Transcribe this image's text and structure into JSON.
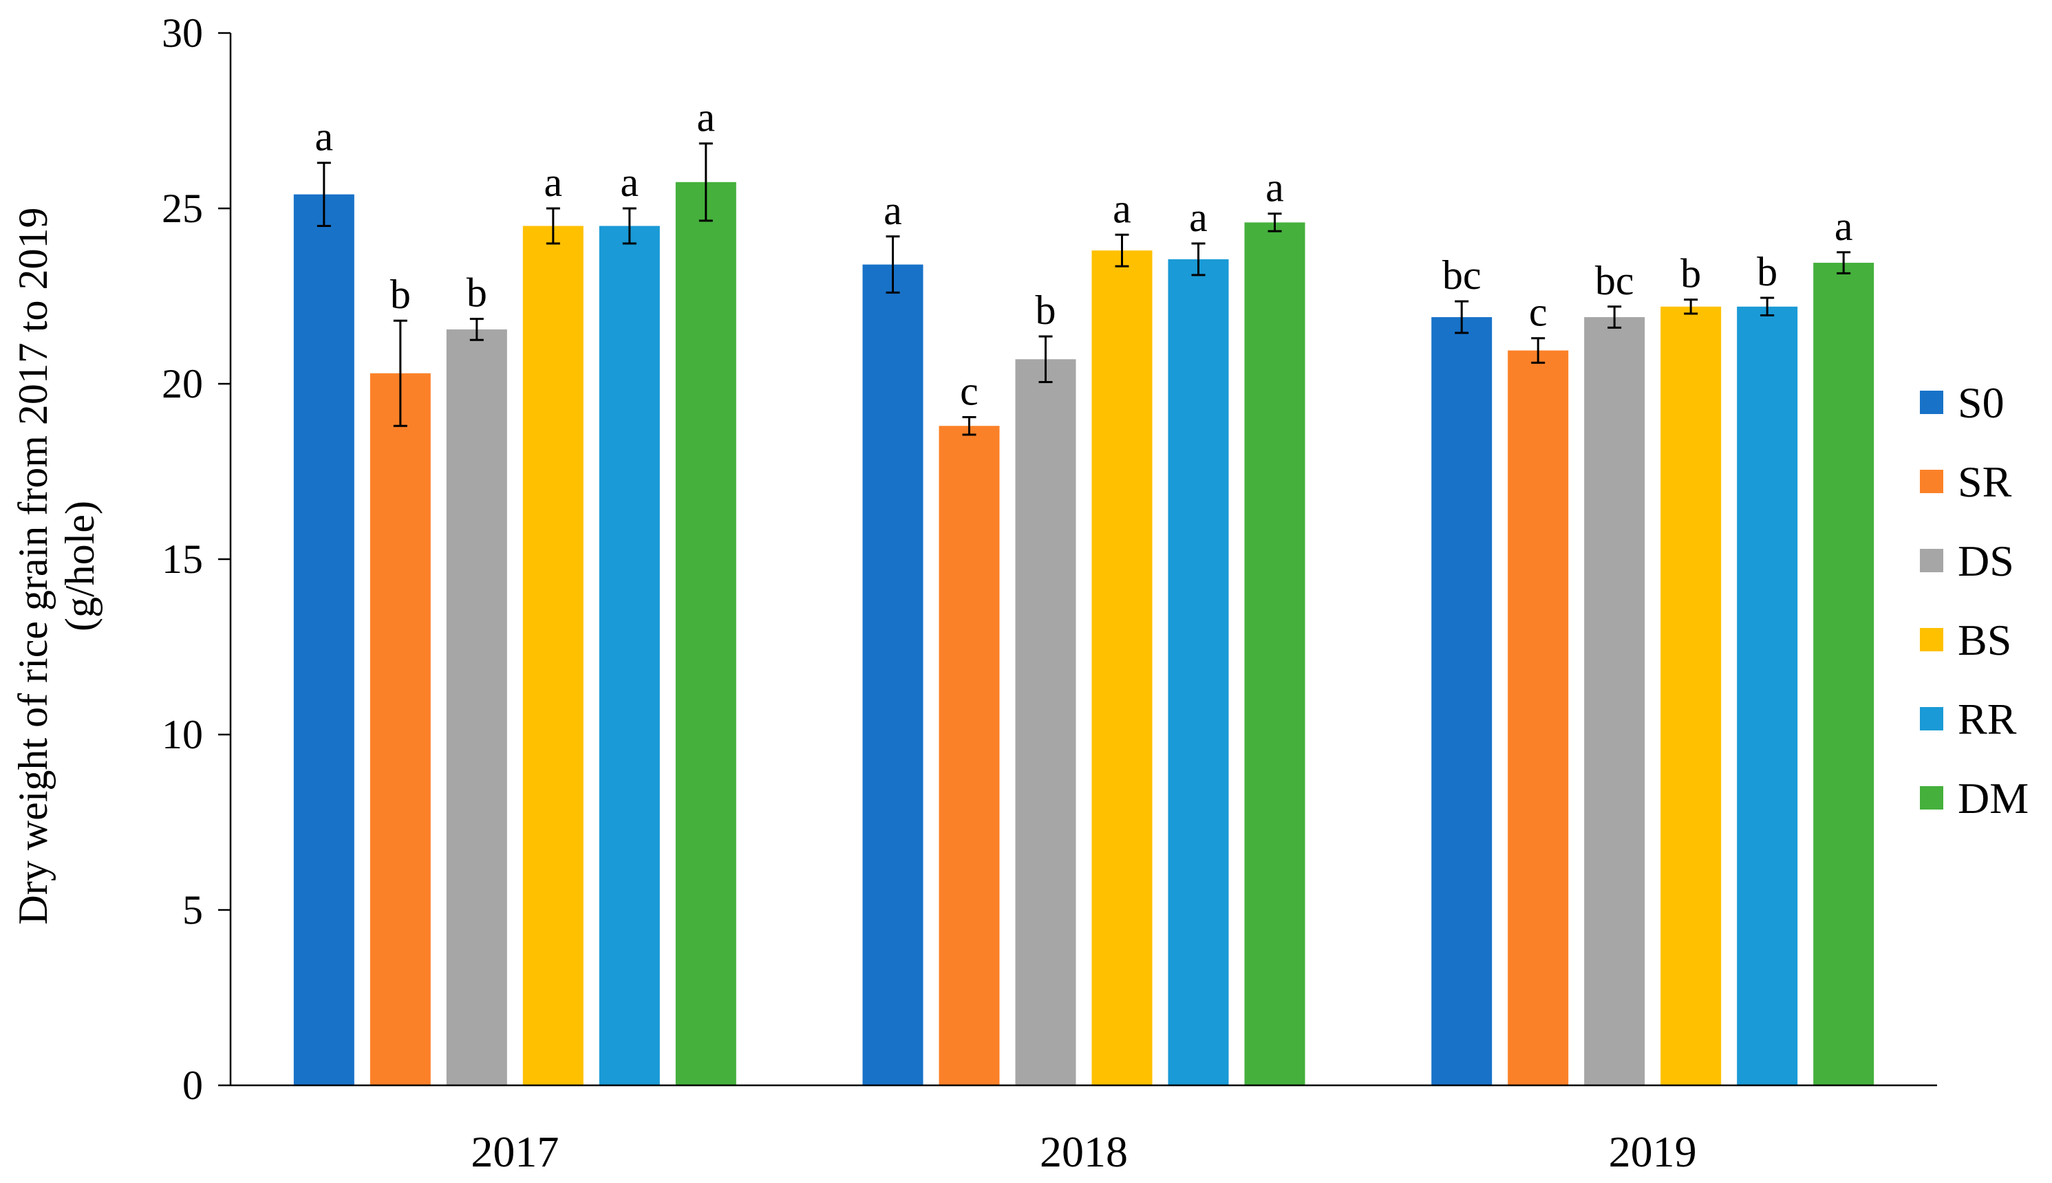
{
  "chart_data": {
    "type": "bar",
    "title": "",
    "xlabel": "",
    "ylabel": "Dry weight of rice grain from 2017 to 2019",
    "ylabel_line2": "(g/hole)",
    "ylim": [
      0,
      30
    ],
    "yticks": [
      0,
      5,
      10,
      15,
      20,
      25,
      30
    ],
    "categories": [
      "2017",
      "2018",
      "2019"
    ],
    "legend_position": "right",
    "grid": false,
    "series": [
      {
        "name": "S0",
        "color": "#1872C8",
        "values": [
          25.4,
          23.4,
          21.9
        ],
        "errors": [
          0.9,
          0.8,
          0.45
        ],
        "letters": [
          "a",
          "a",
          "bc"
        ]
      },
      {
        "name": "SR",
        "color": "#FB8128",
        "values": [
          20.3,
          18.8,
          20.95
        ],
        "errors": [
          1.5,
          0.25,
          0.35
        ],
        "letters": [
          "b",
          "c",
          "c"
        ]
      },
      {
        "name": "DS",
        "color": "#A6A6A6",
        "values": [
          21.55,
          20.7,
          21.9
        ],
        "errors": [
          0.3,
          0.65,
          0.3
        ],
        "letters": [
          "b",
          "b",
          "bc"
        ]
      },
      {
        "name": "BS",
        "color": "#FFC000",
        "values": [
          24.5,
          23.8,
          22.2
        ],
        "errors": [
          0.5,
          0.45,
          0.2
        ],
        "letters": [
          "a",
          "a",
          "b"
        ]
      },
      {
        "name": "RR",
        "color": "#1A9AD6",
        "values": [
          24.5,
          23.55,
          22.2
        ],
        "errors": [
          0.5,
          0.45,
          0.25
        ],
        "letters": [
          "a",
          "a",
          "b"
        ]
      },
      {
        "name": "DM",
        "color": "#45B03C",
        "values": [
          25.75,
          24.6,
          23.45
        ],
        "errors": [
          1.1,
          0.25,
          0.3
        ],
        "letters": [
          "a",
          "a",
          "a"
        ]
      }
    ]
  }
}
